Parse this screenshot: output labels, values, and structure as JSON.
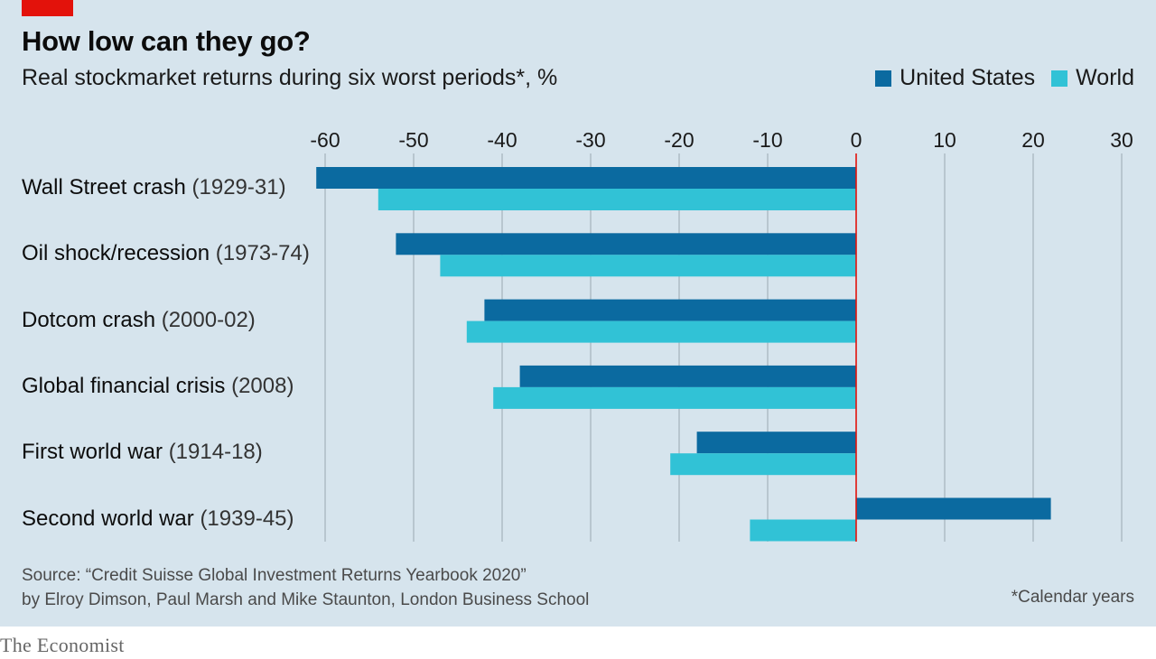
{
  "header": {
    "title": "How low can they go?",
    "subtitle": "Real stockmarket returns during six worst periods*, %"
  },
  "colors": {
    "background": "#d6e4ed",
    "us": "#0b6aa0",
    "world": "#31c2d6",
    "zero_line": "#e3120b",
    "grid": "#a9b6bf",
    "brand_tag": "#e3120b"
  },
  "chart_data": {
    "type": "bar",
    "orientation": "horizontal",
    "categories": [
      {
        "name": "Wall Street crash",
        "years": "(1929-31)"
      },
      {
        "name": "Oil shock/recession",
        "years": "(1973-74)"
      },
      {
        "name": "Dotcom crash",
        "years": "(2000-02)"
      },
      {
        "name": "Global financial crisis",
        "years": "(2008)"
      },
      {
        "name": "First world war",
        "years": "(1914-18)"
      },
      {
        "name": "Second world war",
        "years": "(1939-45)"
      }
    ],
    "series": [
      {
        "name": "United States",
        "values": [
          -61,
          -52,
          -42,
          -38,
          -18,
          22
        ]
      },
      {
        "name": "World",
        "values": [
          -54,
          -47,
          -44,
          -41,
          -21,
          -12
        ]
      }
    ],
    "xlim": [
      -60,
      30
    ],
    "xticks": [
      "-60",
      "-50",
      "-40",
      "-30",
      "-20",
      "-10",
      "0",
      "10",
      "20",
      "30"
    ],
    "xtick_values": [
      -60,
      -50,
      -40,
      -30,
      -20,
      -10,
      0,
      10,
      20,
      30
    ],
    "grid": true,
    "legend_placement": "top-right"
  },
  "footer": {
    "source_line1": "Source: “Credit Suisse Global Investment Returns Yearbook 2020”",
    "source_line2": "by Elroy Dimson, Paul Marsh and Mike Staunton, London Business School",
    "footnote": "*Calendar years"
  },
  "brand": "The Economist"
}
